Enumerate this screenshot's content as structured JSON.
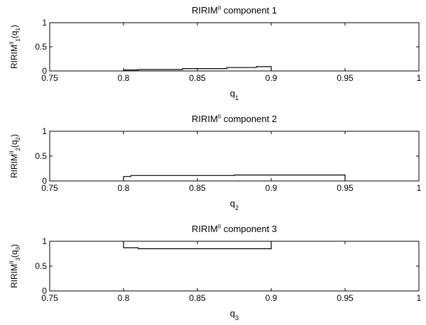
{
  "chart_data": [
    {
      "type": "line",
      "title": {
        "main": "RIRIM",
        "sup": "II",
        "rest": " component 1"
      },
      "xlabel": {
        "main": "q",
        "sub": "1"
      },
      "ylabel": {
        "main": "RIRIM",
        "sup": "II",
        "sub": "1",
        "arg": "(q",
        "argsub": "1",
        "close": ")"
      },
      "xlim": [
        0.75,
        1
      ],
      "ylim": [
        0,
        1
      ],
      "xticks": [
        0.75,
        0.8,
        0.85,
        0.9,
        0.95,
        1
      ],
      "xtick_labels": [
        "0.75",
        "0.8",
        "0.85",
        "0.9",
        "0.95",
        "1"
      ],
      "yticks": [
        0,
        0.5,
        1
      ],
      "ytick_labels": [
        "0",
        "0.5",
        "1"
      ],
      "grid": false,
      "series": [
        {
          "x": [
            0.8,
            0.8,
            0.81,
            0.81,
            0.84,
            0.84,
            0.87,
            0.87,
            0.89,
            0.89,
            0.9,
            0.9
          ],
          "y": [
            0.0,
            0.02,
            0.02,
            0.03,
            0.03,
            0.05,
            0.05,
            0.07,
            0.07,
            0.09,
            0.09,
            0.0
          ]
        }
      ]
    },
    {
      "type": "line",
      "title": {
        "main": "RIRIM",
        "sup": "II",
        "rest": " component 2"
      },
      "xlabel": {
        "main": "q",
        "sub": "2"
      },
      "ylabel": {
        "main": "RIRIM",
        "sup": "II",
        "sub": "2",
        "arg": "(q",
        "argsub": "2",
        "close": ")"
      },
      "xlim": [
        0.75,
        1
      ],
      "ylim": [
        0,
        1
      ],
      "xticks": [
        0.75,
        0.8,
        0.85,
        0.9,
        0.95,
        1
      ],
      "xtick_labels": [
        "0.75",
        "0.8",
        "0.85",
        "0.9",
        "0.95",
        "1"
      ],
      "yticks": [
        0,
        0.5,
        1
      ],
      "ytick_labels": [
        "0",
        "0.5",
        "1"
      ],
      "grid": false,
      "series": [
        {
          "x": [
            0.8,
            0.8,
            0.805,
            0.805,
            0.875,
            0.875,
            0.95,
            0.95
          ],
          "y": [
            0.0,
            0.09,
            0.09,
            0.11,
            0.11,
            0.12,
            0.12,
            0.0
          ]
        }
      ]
    },
    {
      "type": "line",
      "title": {
        "main": "RIRIM",
        "sup": "II",
        "rest": " component 3"
      },
      "xlabel": {
        "main": "q",
        "sub": "3"
      },
      "ylabel": {
        "main": "RIRIM",
        "sup": "II",
        "sub": "3",
        "arg": "(q",
        "argsub": "3",
        "close": ")"
      },
      "xlim": [
        0.75,
        1
      ],
      "ylim": [
        0,
        1
      ],
      "xticks": [
        0.75,
        0.8,
        0.85,
        0.9,
        0.95,
        1
      ],
      "xtick_labels": [
        "0.75",
        "0.8",
        "0.85",
        "0.9",
        "0.95",
        "1"
      ],
      "yticks": [
        0,
        0.5,
        1
      ],
      "ytick_labels": [
        "0",
        "0.5",
        "1"
      ],
      "grid": false,
      "series": [
        {
          "x": [
            0.8,
            0.8,
            0.81,
            0.81,
            0.9,
            0.9
          ],
          "y": [
            1.0,
            0.87,
            0.87,
            0.85,
            0.85,
            1.0
          ]
        }
      ]
    }
  ]
}
